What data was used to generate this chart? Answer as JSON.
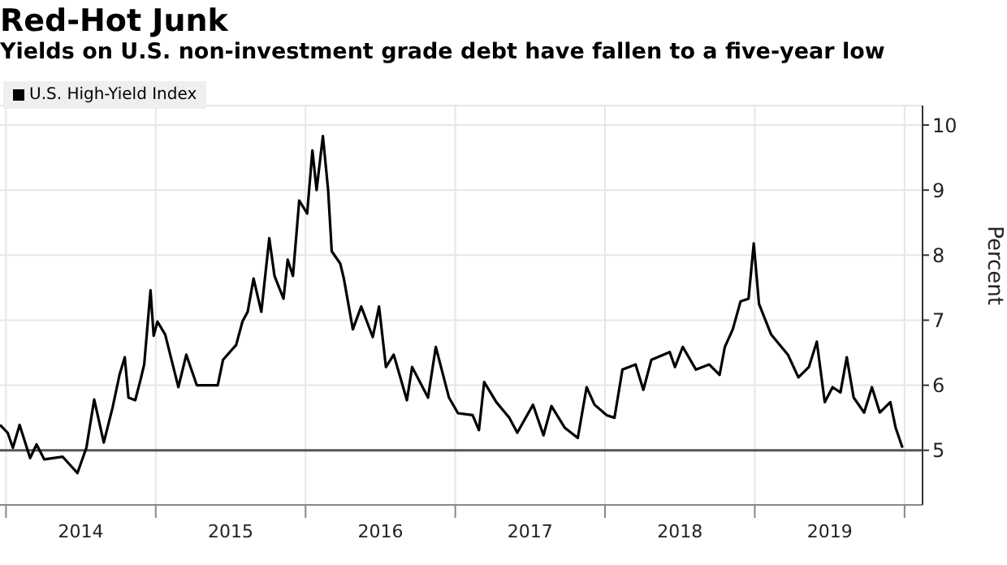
{
  "chart_data": {
    "type": "line",
    "title": "Red-Hot Junk",
    "subtitle": "Yields on U.S. non-investment grade debt have fallen to a five-year low",
    "ylabel": "Percent",
    "x": [
      2013.96,
      2014.011,
      2014.046,
      2014.091,
      2014.161,
      2014.204,
      2014.256,
      2014.379,
      2014.477,
      2014.537,
      2014.589,
      2014.653,
      2014.712,
      2014.758,
      2014.793,
      2014.818,
      2014.863,
      2014.898,
      2014.923,
      2014.965,
      2014.986,
      2015.011,
      2015.063,
      2015.151,
      2015.204,
      2015.274,
      2015.414,
      2015.449,
      2015.537,
      2015.579,
      2015.614,
      2015.653,
      2015.705,
      2015.758,
      2015.793,
      2015.853,
      2015.881,
      2015.916,
      2015.958,
      2016.011,
      2016.046,
      2016.074,
      2016.116,
      2016.151,
      2016.175,
      2016.232,
      2016.256,
      2016.316,
      2016.372,
      2016.449,
      2016.491,
      2016.537,
      2016.589,
      2016.677,
      2016.712,
      2016.818,
      2016.87,
      2016.958,
      2017.018,
      2017.116,
      2017.158,
      2017.193,
      2017.274,
      2017.361,
      2017.414,
      2017.519,
      2017.589,
      2017.642,
      2017.73,
      2017.818,
      2017.877,
      2017.93,
      2018.011,
      2018.063,
      2018.116,
      2018.204,
      2018.256,
      2018.309,
      2018.432,
      2018.467,
      2018.519,
      2018.607,
      2018.695,
      2018.765,
      2018.8,
      2018.853,
      2018.905,
      2018.958,
      2018.993,
      2019.028,
      2019.109,
      2019.221,
      2019.291,
      2019.361,
      2019.414,
      2019.467,
      2019.519,
      2019.572,
      2019.614,
      2019.66,
      2019.73,
      2019.782,
      2019.835,
      2019.905,
      2019.94,
      2019.986
    ],
    "series": [
      {
        "name": "U.S. High-Yield Index",
        "color": "#000000",
        "values": [
          5.39,
          5.27,
          5.04,
          5.39,
          4.88,
          5.09,
          4.86,
          4.9,
          4.65,
          5.04,
          5.78,
          5.12,
          5.66,
          6.16,
          6.43,
          5.81,
          5.77,
          6.08,
          6.32,
          7.46,
          6.76,
          6.98,
          6.78,
          5.97,
          6.47,
          6.0,
          6.0,
          6.39,
          6.62,
          6.98,
          7.13,
          7.64,
          7.13,
          8.26,
          7.68,
          7.33,
          7.93,
          7.68,
          8.84,
          8.64,
          9.61,
          9.0,
          9.83,
          9.0,
          8.06,
          7.87,
          7.64,
          6.86,
          7.21,
          6.74,
          7.21,
          6.28,
          6.47,
          5.77,
          6.28,
          5.81,
          6.59,
          5.81,
          5.57,
          5.54,
          5.31,
          6.05,
          5.74,
          5.5,
          5.27,
          5.7,
          5.23,
          5.68,
          5.35,
          5.19,
          5.97,
          5.7,
          5.54,
          5.5,
          6.24,
          6.32,
          5.93,
          6.39,
          6.51,
          6.28,
          6.59,
          6.24,
          6.32,
          6.16,
          6.59,
          6.86,
          7.29,
          7.33,
          8.18,
          7.25,
          6.78,
          6.47,
          6.12,
          6.28,
          6.67,
          5.74,
          5.97,
          5.89,
          6.43,
          5.81,
          5.58,
          5.97,
          5.58,
          5.74,
          5.35,
          5.04
        ]
      }
    ],
    "xlim": [
      2013.96,
      2020.12
    ],
    "xticks": [
      {
        "value": 2014,
        "label": null
      },
      {
        "value": 2014.5,
        "label": "2014"
      },
      {
        "value": 2015,
        "label": null
      },
      {
        "value": 2015.5,
        "label": "2015"
      },
      {
        "value": 2016,
        "label": null
      },
      {
        "value": 2016.5,
        "label": "2016"
      },
      {
        "value": 2017,
        "label": null
      },
      {
        "value": 2017.5,
        "label": "2017"
      },
      {
        "value": 2018,
        "label": null
      },
      {
        "value": 2018.5,
        "label": "2018"
      },
      {
        "value": 2019,
        "label": null
      },
      {
        "value": 2019.5,
        "label": "2019"
      },
      {
        "value": 2020,
        "label": null
      }
    ],
    "ylim": [
      4.16,
      10.3
    ],
    "yticks": [
      5,
      6,
      7,
      8,
      9,
      10
    ],
    "ref_lines": [
      {
        "axis": "y",
        "value": 5,
        "color": "#555555"
      }
    ],
    "grid": true,
    "legend": "top left",
    "marker": "none",
    "line_style": "solid"
  }
}
